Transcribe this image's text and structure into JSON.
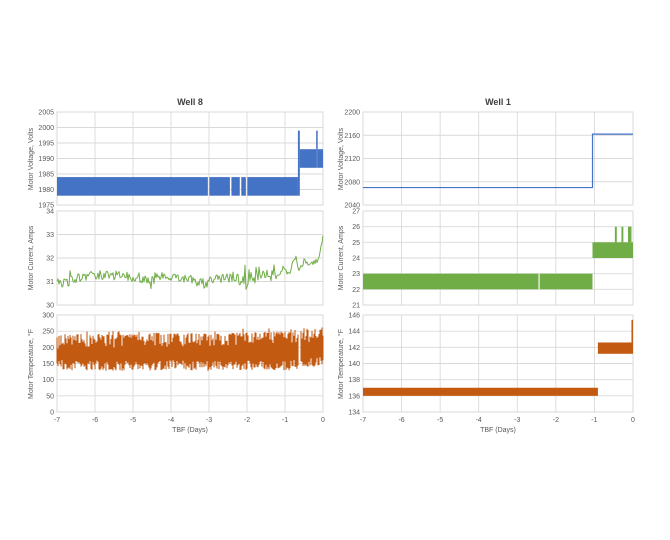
{
  "chart_data": [
    {
      "id": "well8-motor-voltage",
      "well": "Well 8",
      "type": "area",
      "title": "Well 8",
      "xlabel": "",
      "ylabel": "Motor Voltage, Volts",
      "xlim": [
        -7,
        0
      ],
      "ylim": [
        1975,
        2005
      ],
      "yticks": [
        1975,
        1980,
        1985,
        1990,
        1995,
        2000,
        2005
      ],
      "xticks": [
        -7,
        -6,
        -5,
        -4,
        -3,
        -2,
        -1,
        0
      ],
      "x_tick_labels_visible": false,
      "grid": true,
      "color": "#4472C4",
      "series": [
        {
          "name": "Motor Voltage",
          "render": "bands",
          "bands": [
            [
              -7.0,
              -3.03,
              1978,
              1984
            ],
            [
              -2.99,
              -2.45,
              1978,
              1984
            ],
            [
              -2.41,
              -2.19,
              1978,
              1984
            ],
            [
              -2.15,
              -2.03,
              1978,
              1984
            ],
            [
              -1.99,
              -0.66,
              1978,
              1984
            ],
            [
              -0.66,
              -0.61,
              1978,
              1999
            ],
            [
              -0.61,
              -0.18,
              1987,
              1993
            ],
            [
              -0.18,
              -0.14,
              1987,
              1999
            ],
            [
              -0.14,
              0.0,
              1987,
              1993
            ]
          ]
        }
      ]
    },
    {
      "id": "well1-motor-voltage",
      "well": "Well 1",
      "type": "line",
      "title": "Well 1",
      "xlabel": "",
      "ylabel": "Motor Voltage, Volts",
      "xlim": [
        -7,
        0
      ],
      "ylim": [
        2040,
        2200
      ],
      "yticks": [
        2040,
        2080,
        2120,
        2160,
        2200
      ],
      "xticks": [
        -7,
        -6,
        -5,
        -4,
        -3,
        -2,
        -1,
        0
      ],
      "x_tick_labels_visible": false,
      "grid": true,
      "color": "#4472C4",
      "series": [
        {
          "name": "Motor Voltage",
          "render": "line",
          "points": [
            [
              -7.0,
              2070
            ],
            [
              -1.05,
              2070
            ],
            [
              -1.05,
              2162
            ],
            [
              0.0,
              2162
            ]
          ]
        }
      ]
    },
    {
      "id": "well8-motor-current",
      "well": "Well 8",
      "type": "line",
      "title": "",
      "xlabel": "",
      "ylabel": "Motor Current, Amps",
      "xlim": [
        -7,
        0
      ],
      "ylim": [
        30,
        34
      ],
      "yticks": [
        30,
        31,
        32,
        33,
        34
      ],
      "xticks": [
        -7,
        -6,
        -5,
        -4,
        -3,
        -2,
        -1,
        0
      ],
      "x_tick_labels_visible": false,
      "grid": true,
      "color": "#70AD47",
      "series": [
        {
          "name": "Motor Current",
          "render": "noise_line",
          "mean_amp_control_points": [
            [
              -7.0,
              31.0,
              0.22
            ],
            [
              -6.75,
              30.92,
              0.2
            ],
            [
              -6.45,
              31.15,
              0.18
            ],
            [
              -6.1,
              31.28,
              0.18
            ],
            [
              -5.6,
              31.28,
              0.2
            ],
            [
              -5.15,
              31.2,
              0.2
            ],
            [
              -4.75,
              31.15,
              0.22
            ],
            [
              -4.55,
              30.92,
              0.28
            ],
            [
              -4.35,
              31.18,
              0.2
            ],
            [
              -3.9,
              31.2,
              0.2
            ],
            [
              -3.5,
              31.08,
              0.22
            ],
            [
              -3.1,
              30.97,
              0.22
            ],
            [
              -2.8,
              31.1,
              0.2
            ],
            [
              -2.5,
              31.18,
              0.2
            ],
            [
              -2.2,
              31.08,
              0.24
            ],
            [
              -2.0,
              30.88,
              0.3
            ],
            [
              -1.8,
              31.12,
              0.2
            ],
            [
              -1.5,
              31.32,
              0.18
            ],
            [
              -1.2,
              31.28,
              0.18
            ],
            [
              -1.0,
              31.45,
              0.15
            ],
            [
              -0.85,
              31.35,
              0.14
            ],
            [
              -0.78,
              31.92,
              0.12
            ],
            [
              -0.68,
              31.8,
              0.12
            ],
            [
              -0.6,
              31.45,
              0.15
            ],
            [
              -0.5,
              31.85,
              0.12
            ],
            [
              -0.32,
              31.78,
              0.12
            ],
            [
              -0.16,
              31.9,
              0.12
            ],
            [
              -0.08,
              32.25,
              0.1
            ],
            [
              -0.03,
              32.6,
              0.1
            ],
            [
              0.0,
              32.95,
              0.05
            ]
          ]
        }
      ]
    },
    {
      "id": "well1-motor-current",
      "well": "Well 1",
      "type": "area",
      "title": "",
      "xlabel": "",
      "ylabel": "Motor Current, Amps",
      "xlim": [
        -7,
        0
      ],
      "ylim": [
        21,
        27
      ],
      "yticks": [
        21,
        22,
        23,
        24,
        25,
        26,
        27
      ],
      "xticks": [
        -7,
        -6,
        -5,
        -4,
        -3,
        -2,
        -1,
        0
      ],
      "x_tick_labels_visible": false,
      "grid": true,
      "color": "#70AD47",
      "series": [
        {
          "name": "Motor Current",
          "render": "bands",
          "bands": [
            [
              -7.0,
              -2.45,
              22,
              23
            ],
            [
              -2.42,
              -1.05,
              22,
              23
            ],
            [
              -1.05,
              0.0,
              24,
              25
            ],
            [
              -0.47,
              -0.42,
              25,
              26
            ],
            [
              -0.3,
              -0.25,
              25,
              26
            ],
            [
              -0.13,
              -0.04,
              25,
              26
            ]
          ]
        }
      ]
    },
    {
      "id": "well8-motor-temperature",
      "well": "Well 8",
      "type": "area",
      "title": "",
      "xlabel": "TBF (Days)",
      "ylabel": "Motor Temperature, °F",
      "xlim": [
        -7,
        0
      ],
      "ylim": [
        0,
        300
      ],
      "yticks": [
        0,
        50,
        100,
        150,
        200,
        250,
        300
      ],
      "xticks": [
        -7,
        -6,
        -5,
        -4,
        -3,
        -2,
        -1,
        0
      ],
      "x_tick_labels_visible": true,
      "grid": true,
      "color": "#C35A11",
      "series": [
        {
          "name": "Motor Temperature",
          "render": "dense_noise",
          "lo_hi_control_points": [
            [
              -7.0,
              132,
              236
            ],
            [
              -6.5,
              128,
              240
            ],
            [
              -6.0,
              130,
              240
            ],
            [
              -5.5,
              126,
              238
            ],
            [
              -5.0,
              130,
              240
            ],
            [
              -4.5,
              127,
              246
            ],
            [
              -4.0,
              132,
              242
            ],
            [
              -3.5,
              129,
              244
            ],
            [
              -3.0,
              127,
              242
            ],
            [
              -2.5,
              131,
              244
            ],
            [
              -2.0,
              129,
              246
            ],
            [
              -1.5,
              132,
              248
            ],
            [
              -1.0,
              127,
              250
            ],
            [
              -0.6,
              134,
              250
            ],
            [
              -0.3,
              138,
              256
            ],
            [
              -0.12,
              142,
              260
            ],
            [
              0.0,
              148,
              266
            ]
          ],
          "gaps": [
            [
              -0.635,
              -0.605
            ]
          ]
        }
      ]
    },
    {
      "id": "well1-motor-temperature",
      "well": "Well 1",
      "type": "area",
      "title": "",
      "xlabel": "TBF (Days)",
      "ylabel": "Motor Temperature, °F",
      "xlim": [
        -7,
        0
      ],
      "ylim": [
        134,
        146
      ],
      "yticks": [
        134,
        136,
        138,
        140,
        142,
        144,
        146
      ],
      "xticks": [
        -7,
        -6,
        -5,
        -4,
        -3,
        -2,
        -1,
        0
      ],
      "x_tick_labels_visible": true,
      "grid": true,
      "color": "#C35A11",
      "series": [
        {
          "name": "Motor Temperature",
          "render": "bands",
          "bands": [
            [
              -7.0,
              -0.91,
              136,
              137
            ],
            [
              -0.91,
              0.0,
              141.2,
              142.6
            ],
            [
              -0.04,
              0.0,
              142.6,
              145.4
            ]
          ]
        }
      ]
    }
  ],
  "style": {
    "grid_color": "#D9D9D9",
    "tick_label_color": "#595959",
    "title_color": "#404040",
    "background": "#ffffff"
  }
}
